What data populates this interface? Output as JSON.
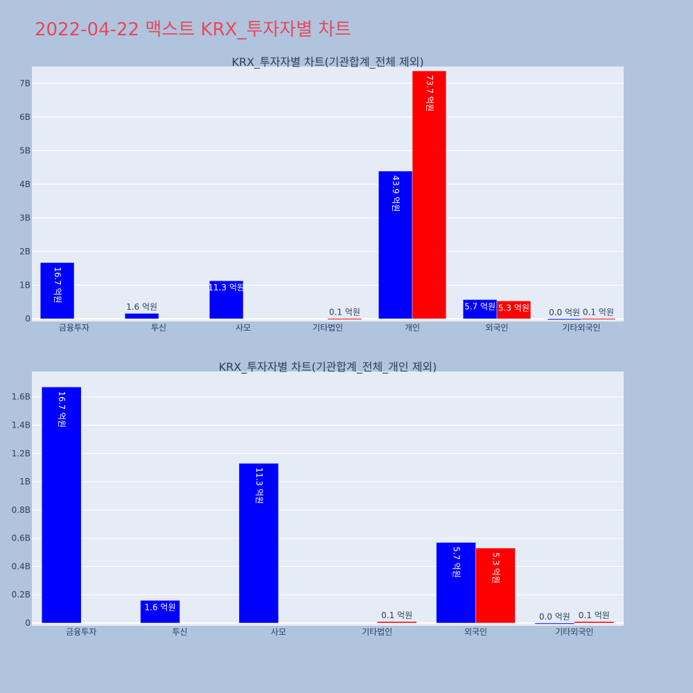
{
  "page": {
    "title": "2022-04-22 맥스트 KRX_투자자별 차트"
  },
  "colors": {
    "series_a": "#0000ff",
    "series_b": "#ff0000",
    "title": "#e8485c",
    "plot_bg": "#e5ecf6",
    "page_bg": "#b0c4de"
  },
  "chart_data": [
    {
      "type": "bar",
      "title": "KRX_투자자별 차트(기관합계_전체 제외)",
      "categories": [
        "금융투자",
        "투신",
        "사모",
        "기타법인",
        "개인",
        "외국인",
        "기타외국인"
      ],
      "ylim": [
        0,
        7500000000
      ],
      "yticks": [
        0,
        1000000000,
        2000000000,
        3000000000,
        4000000000,
        5000000000,
        6000000000,
        7000000000
      ],
      "ytick_labels": [
        "0",
        "1B",
        "2B",
        "3B",
        "4B",
        "5B",
        "6B",
        "7B"
      ],
      "grid": true,
      "series": [
        {
          "color": "#0000ff",
          "values": [
            1670000000,
            160000000,
            1130000000,
            null,
            4390000000,
            570000000,
            0
          ],
          "labels": [
            "16.7 억원",
            "1.6 억원",
            "11.3 억원",
            null,
            "43.9 억원",
            "5.7 억원",
            "0.0 억원"
          ]
        },
        {
          "color": "#ff0000",
          "values": [
            null,
            null,
            null,
            10000000,
            7370000000,
            530000000,
            10000000
          ],
          "labels": [
            null,
            null,
            null,
            "0.1 억원",
            "73.7 억원",
            "5.3 억원",
            "0.1 억원"
          ]
        }
      ]
    },
    {
      "type": "bar",
      "title": "KRX_투자자별 차트(기관합계_전체_개인 제외)",
      "categories": [
        "금융투자",
        "투신",
        "사모",
        "기타법인",
        "외국인",
        "기타외국인"
      ],
      "ylim": [
        0,
        1780000000
      ],
      "yticks": [
        0,
        200000000,
        400000000,
        600000000,
        800000000,
        1000000000,
        1200000000,
        1400000000,
        1600000000
      ],
      "ytick_labels": [
        "0",
        "0.2B",
        "0.4B",
        "0.6B",
        "0.8B",
        "1B",
        "1.2B",
        "1.4B",
        "1.6B"
      ],
      "grid": true,
      "series": [
        {
          "color": "#0000ff",
          "values": [
            1670000000,
            160000000,
            1130000000,
            null,
            570000000,
            0
          ],
          "labels": [
            "16.7 억원",
            "1.6 억원",
            "11.3 억원",
            null,
            "5.7 억원",
            "0.0 억원"
          ]
        },
        {
          "color": "#ff0000",
          "values": [
            null,
            null,
            null,
            10000000,
            530000000,
            10000000
          ],
          "labels": [
            null,
            null,
            null,
            "0.1 억원",
            "5.3 억원",
            "0.1 억원"
          ]
        }
      ]
    }
  ]
}
